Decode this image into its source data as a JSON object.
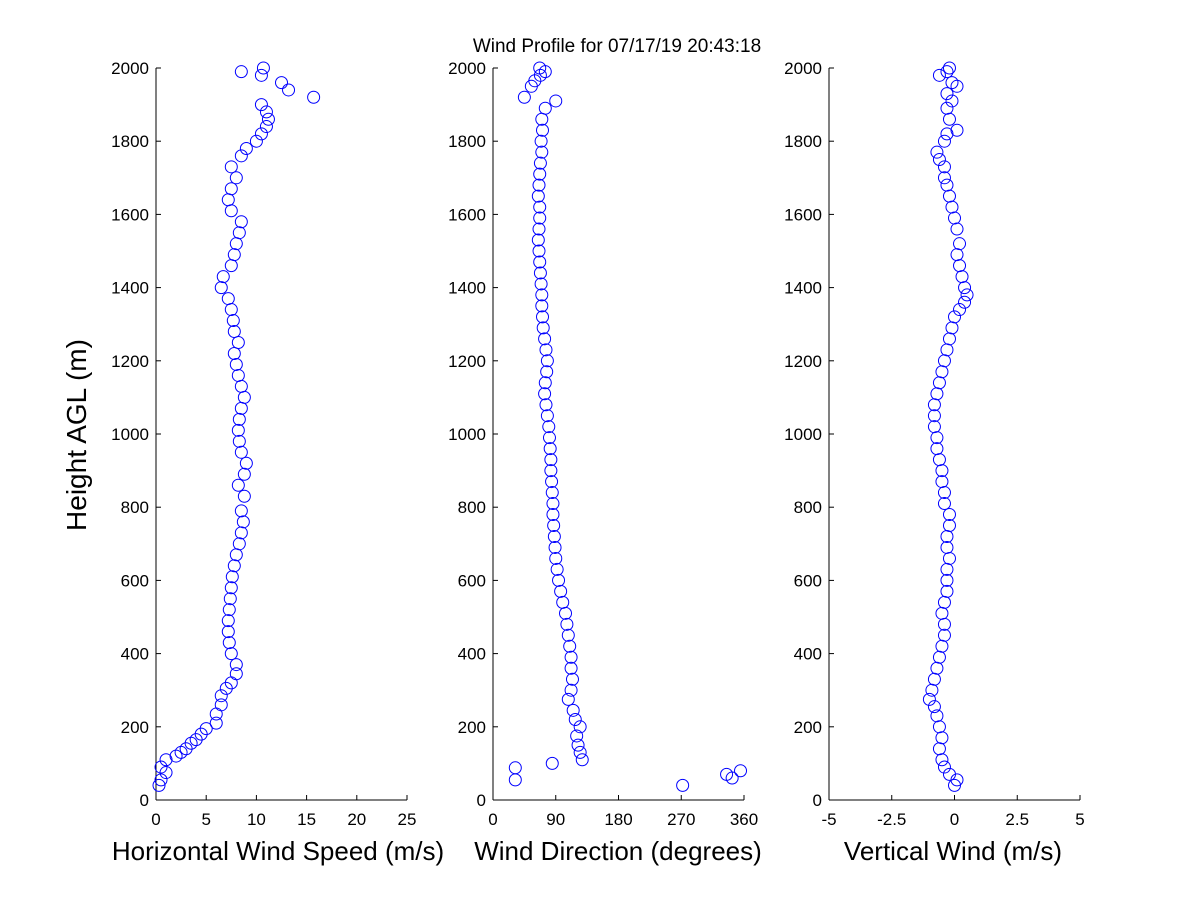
{
  "chart_data": {
    "title": "Wind Profile for  07/17/19 20:43:18",
    "ylabel": "Height AGL (m)",
    "marker_color": "#0000ff",
    "panels": [
      {
        "type": "scatter",
        "xlabel": "Horizontal Wind Speed (m/s)",
        "xlim": [
          0,
          25
        ],
        "ylim": [
          0,
          2000
        ],
        "xticks": [
          0,
          5,
          10,
          15,
          20,
          25
        ],
        "xtick_labels": [
          "0",
          "5",
          "10",
          "15",
          "20",
          "25"
        ],
        "yticks": [
          0,
          200,
          400,
          600,
          800,
          1000,
          1200,
          1400,
          1600,
          1800,
          2000
        ],
        "ytick_labels": [
          "0",
          "200",
          "400",
          "600",
          "800",
          "1000",
          "1200",
          "1400",
          "1600",
          "1800",
          "2000"
        ],
        "points": [
          [
            0.3,
            40
          ],
          [
            0.5,
            55
          ],
          [
            0.5,
            90
          ],
          [
            1,
            75
          ],
          [
            1,
            110
          ],
          [
            2,
            120
          ],
          [
            2.5,
            130
          ],
          [
            3,
            140
          ],
          [
            3.5,
            155
          ],
          [
            4,
            165
          ],
          [
            4.5,
            180
          ],
          [
            5,
            195
          ],
          [
            6,
            210
          ],
          [
            6,
            235
          ],
          [
            6.5,
            260
          ],
          [
            6.5,
            285
          ],
          [
            7,
            305
          ],
          [
            7.5,
            320
          ],
          [
            8,
            345
          ],
          [
            8,
            370
          ],
          [
            7.5,
            400
          ],
          [
            7.3,
            430
          ],
          [
            7.2,
            460
          ],
          [
            7.2,
            490
          ],
          [
            7.3,
            520
          ],
          [
            7.4,
            550
          ],
          [
            7.5,
            580
          ],
          [
            7.6,
            610
          ],
          [
            7.8,
            640
          ],
          [
            8,
            670
          ],
          [
            8.3,
            700
          ],
          [
            8.5,
            730
          ],
          [
            8.7,
            760
          ],
          [
            8.5,
            790
          ],
          [
            8.8,
            830
          ],
          [
            8.2,
            860
          ],
          [
            8.8,
            890
          ],
          [
            9,
            920
          ],
          [
            8.5,
            950
          ],
          [
            8.3,
            980
          ],
          [
            8.2,
            1010
          ],
          [
            8.3,
            1040
          ],
          [
            8.5,
            1070
          ],
          [
            8.8,
            1100
          ],
          [
            8.5,
            1130
          ],
          [
            8.2,
            1160
          ],
          [
            8,
            1190
          ],
          [
            7.8,
            1220
          ],
          [
            8.2,
            1250
          ],
          [
            7.8,
            1280
          ],
          [
            7.7,
            1310
          ],
          [
            7.5,
            1340
          ],
          [
            7.2,
            1370
          ],
          [
            6.5,
            1400
          ],
          [
            6.7,
            1430
          ],
          [
            7.5,
            1460
          ],
          [
            7.8,
            1490
          ],
          [
            8,
            1520
          ],
          [
            8.3,
            1550
          ],
          [
            8.5,
            1580
          ],
          [
            7.5,
            1610
          ],
          [
            7.2,
            1640
          ],
          [
            7.5,
            1670
          ],
          [
            8,
            1700
          ],
          [
            7.5,
            1730
          ],
          [
            8.5,
            1760
          ],
          [
            9,
            1780
          ],
          [
            10,
            1800
          ],
          [
            10.5,
            1820
          ],
          [
            11,
            1840
          ],
          [
            11.2,
            1860
          ],
          [
            11,
            1880
          ],
          [
            10.5,
            1900
          ],
          [
            15.7,
            1920
          ],
          [
            13.2,
            1940
          ],
          [
            12.5,
            1960
          ],
          [
            10.5,
            1980
          ],
          [
            8.5,
            1990
          ],
          [
            10.7,
            2000
          ]
        ]
      },
      {
        "type": "scatter",
        "xlabel": "Wind Direction (degrees)",
        "xlim": [
          0,
          360
        ],
        "ylim": [
          0,
          2000
        ],
        "xticks": [
          0,
          90,
          180,
          270,
          360
        ],
        "xtick_labels": [
          "0",
          "90",
          "180",
          "270",
          "360"
        ],
        "yticks": [
          0,
          200,
          400,
          600,
          800,
          1000,
          1200,
          1400,
          1600,
          1800,
          2000
        ],
        "ytick_labels": [
          "0",
          "200",
          "400",
          "600",
          "800",
          "1000",
          "1200",
          "1400",
          "1600",
          "1800",
          "2000"
        ],
        "points": [
          [
            272,
            40
          ],
          [
            32,
            55
          ],
          [
            343,
            60
          ],
          [
            335,
            70
          ],
          [
            355,
            80
          ],
          [
            32,
            88
          ],
          [
            85,
            100
          ],
          [
            128,
            110
          ],
          [
            125,
            130
          ],
          [
            122,
            150
          ],
          [
            120,
            175
          ],
          [
            125,
            200
          ],
          [
            118,
            220
          ],
          [
            115,
            245
          ],
          [
            108,
            275
          ],
          [
            112,
            300
          ],
          [
            114,
            330
          ],
          [
            112,
            360
          ],
          [
            112,
            390
          ],
          [
            110,
            420
          ],
          [
            108,
            450
          ],
          [
            106,
            480
          ],
          [
            104,
            510
          ],
          [
            100,
            540
          ],
          [
            97,
            570
          ],
          [
            94,
            600
          ],
          [
            92,
            630
          ],
          [
            90,
            660
          ],
          [
            89,
            690
          ],
          [
            88,
            720
          ],
          [
            87,
            750
          ],
          [
            86,
            780
          ],
          [
            86,
            810
          ],
          [
            85,
            840
          ],
          [
            84,
            870
          ],
          [
            83,
            900
          ],
          [
            83,
            930
          ],
          [
            82,
            960
          ],
          [
            81,
            990
          ],
          [
            80,
            1020
          ],
          [
            78,
            1050
          ],
          [
            76,
            1080
          ],
          [
            74,
            1110
          ],
          [
            75,
            1140
          ],
          [
            77,
            1170
          ],
          [
            78,
            1200
          ],
          [
            76,
            1230
          ],
          [
            74,
            1260
          ],
          [
            72,
            1290
          ],
          [
            71,
            1320
          ],
          [
            70,
            1350
          ],
          [
            70,
            1380
          ],
          [
            69,
            1410
          ],
          [
            68,
            1440
          ],
          [
            67,
            1470
          ],
          [
            66,
            1500
          ],
          [
            65,
            1530
          ],
          [
            66,
            1560
          ],
          [
            67,
            1590
          ],
          [
            67,
            1620
          ],
          [
            65,
            1650
          ],
          [
            66,
            1680
          ],
          [
            67,
            1710
          ],
          [
            68,
            1740
          ],
          [
            70,
            1770
          ],
          [
            69,
            1800
          ],
          [
            71,
            1830
          ],
          [
            70,
            1860
          ],
          [
            75,
            1890
          ],
          [
            90,
            1910
          ],
          [
            45,
            1920
          ],
          [
            55,
            1950
          ],
          [
            60,
            1965
          ],
          [
            68,
            1980
          ],
          [
            75,
            1990
          ],
          [
            67,
            2000
          ]
        ]
      },
      {
        "type": "scatter",
        "xlabel": "Vertical Wind (m/s)",
        "xlim": [
          -5,
          5
        ],
        "ylim": [
          0,
          2000
        ],
        "xticks": [
          -5,
          -2.5,
          0,
          2.5,
          5
        ],
        "xtick_labels": [
          "-5",
          "-2.5",
          "0",
          "2.5",
          "5"
        ],
        "yticks": [
          0,
          200,
          400,
          600,
          800,
          1000,
          1200,
          1400,
          1600,
          1800,
          2000
        ],
        "ytick_labels": [
          "0",
          "200",
          "400",
          "600",
          "800",
          "1000",
          "1200",
          "1400",
          "1600",
          "1800",
          "2000"
        ],
        "points": [
          [
            0,
            40
          ],
          [
            0.1,
            55
          ],
          [
            -0.2,
            70
          ],
          [
            -0.4,
            90
          ],
          [
            -0.5,
            110
          ],
          [
            -0.6,
            140
          ],
          [
            -0.5,
            170
          ],
          [
            -0.6,
            200
          ],
          [
            -0.7,
            230
          ],
          [
            -0.8,
            255
          ],
          [
            -1,
            275
          ],
          [
            -0.9,
            300
          ],
          [
            -0.8,
            330
          ],
          [
            -0.7,
            360
          ],
          [
            -0.6,
            390
          ],
          [
            -0.5,
            420
          ],
          [
            -0.4,
            450
          ],
          [
            -0.4,
            480
          ],
          [
            -0.5,
            510
          ],
          [
            -0.4,
            540
          ],
          [
            -0.3,
            570
          ],
          [
            -0.3,
            600
          ],
          [
            -0.3,
            630
          ],
          [
            -0.2,
            660
          ],
          [
            -0.3,
            690
          ],
          [
            -0.3,
            720
          ],
          [
            -0.2,
            750
          ],
          [
            -0.2,
            780
          ],
          [
            -0.4,
            810
          ],
          [
            -0.4,
            840
          ],
          [
            -0.5,
            870
          ],
          [
            -0.5,
            900
          ],
          [
            -0.6,
            930
          ],
          [
            -0.7,
            960
          ],
          [
            -0.7,
            990
          ],
          [
            -0.8,
            1020
          ],
          [
            -0.8,
            1050
          ],
          [
            -0.8,
            1080
          ],
          [
            -0.7,
            1110
          ],
          [
            -0.6,
            1140
          ],
          [
            -0.5,
            1170
          ],
          [
            -0.4,
            1200
          ],
          [
            -0.3,
            1230
          ],
          [
            -0.2,
            1260
          ],
          [
            -0.1,
            1290
          ],
          [
            0,
            1320
          ],
          [
            0.2,
            1340
          ],
          [
            0.4,
            1360
          ],
          [
            0.5,
            1380
          ],
          [
            0.4,
            1400
          ],
          [
            0.3,
            1430
          ],
          [
            0.2,
            1460
          ],
          [
            0.1,
            1490
          ],
          [
            0.2,
            1520
          ],
          [
            0.1,
            1560
          ],
          [
            0,
            1590
          ],
          [
            -0.1,
            1620
          ],
          [
            -0.2,
            1650
          ],
          [
            -0.3,
            1680
          ],
          [
            -0.4,
            1700
          ],
          [
            -0.4,
            1730
          ],
          [
            -0.6,
            1750
          ],
          [
            -0.7,
            1770
          ],
          [
            -0.4,
            1800
          ],
          [
            -0.3,
            1820
          ],
          [
            0.1,
            1830
          ],
          [
            -0.2,
            1860
          ],
          [
            -0.3,
            1890
          ],
          [
            -0.1,
            1910
          ],
          [
            -0.3,
            1930
          ],
          [
            0.1,
            1950
          ],
          [
            -0.1,
            1960
          ],
          [
            -0.6,
            1980
          ],
          [
            -0.3,
            1990
          ],
          [
            -0.2,
            2000
          ]
        ]
      }
    ]
  }
}
